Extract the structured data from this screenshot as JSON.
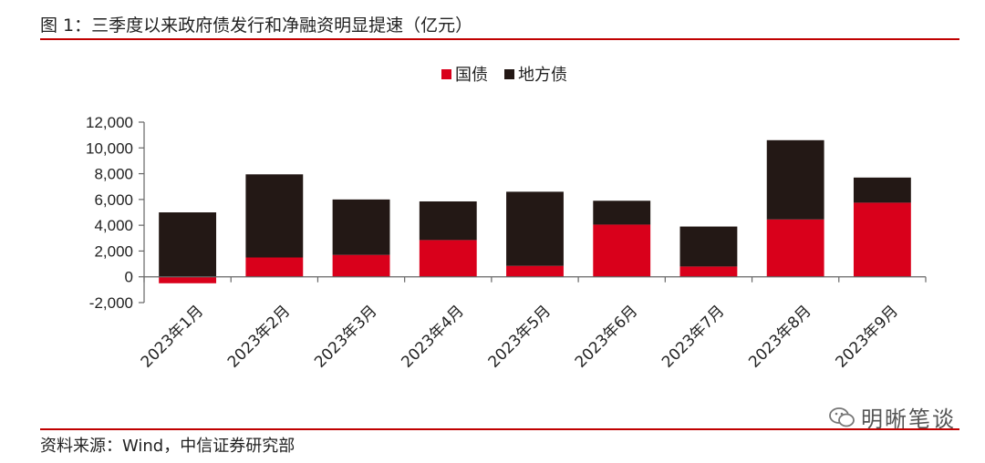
{
  "header": {
    "title": "图 1：三季度以来政府债发行和净融资明显提速（亿元）"
  },
  "footer": {
    "source": "资料来源：Wind，中信证券研究部"
  },
  "watermark": {
    "text": "明晰笔谈",
    "icon": "wechat-icon"
  },
  "colors": {
    "guozhai": "#d9001b",
    "difangzhai": "#231815",
    "rule": "#c00000"
  },
  "chart_data": {
    "type": "bar",
    "stacked": true,
    "categories": [
      "2023年1月",
      "2023年2月",
      "2023年3月",
      "2023年4月",
      "2023年5月",
      "2023年6月",
      "2023年7月",
      "2023年8月",
      "2023年9月"
    ],
    "series": [
      {
        "name": "国债",
        "color": "#d9001b",
        "values": [
          -500,
          1500,
          1700,
          2850,
          850,
          4050,
          800,
          4450,
          5750
        ]
      },
      {
        "name": "地方债",
        "color": "#231815",
        "values": [
          5000,
          6450,
          4300,
          3000,
          5750,
          1850,
          3100,
          6150,
          1950
        ]
      }
    ],
    "ylim": [
      -2000,
      12000
    ],
    "yticks": [
      12000,
      10000,
      8000,
      6000,
      4000,
      2000,
      0,
      -2000
    ],
    "ytick_labels": [
      "12,000",
      "10,000",
      "8,000",
      "6,000",
      "4,000",
      "2,000",
      "0",
      "-2,000"
    ],
    "legend_position": "top-center",
    "grid": false
  }
}
